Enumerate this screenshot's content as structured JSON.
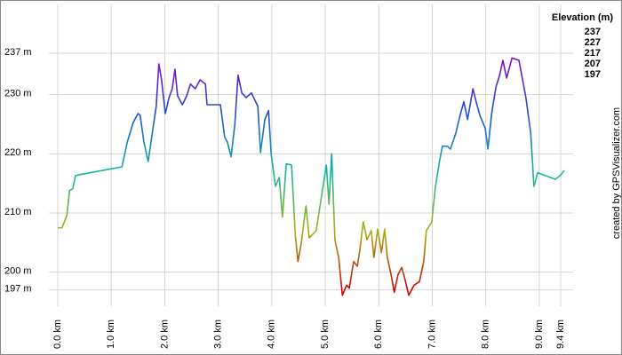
{
  "chart_data": {
    "type": "line",
    "x": [
      0,
      0.08,
      0.17,
      0.22,
      0.28,
      0.33,
      0.42,
      1.2,
      1.3,
      1.41,
      1.5,
      1.54,
      1.61,
      1.69,
      1.78,
      1.84,
      1.89,
      1.94,
      2.01,
      2.08,
      2.14,
      2.19,
      2.24,
      2.33,
      2.41,
      2.48,
      2.57,
      2.66,
      2.76,
      2.79,
      3.04,
      3.12,
      3.17,
      3.24,
      3.31,
      3.37,
      3.44,
      3.52,
      3.62,
      3.74,
      3.79,
      3.87,
      3.94,
      3.99,
      4.07,
      4.14,
      4.2,
      4.27,
      4.37,
      4.44,
      4.49,
      4.55,
      4.64,
      4.7,
      4.83,
      5.02,
      5.07,
      5.12,
      5.18,
      5.25,
      5.32,
      5.4,
      5.45,
      5.53,
      5.6,
      5.65,
      5.71,
      5.78,
      5.86,
      5.91,
      5.98,
      6.05,
      6.11,
      6.16,
      6.23,
      6.29,
      6.36,
      6.43,
      6.49,
      6.56,
      6.66,
      6.76,
      6.84,
      6.89,
      6.99,
      7.06,
      7.14,
      7.19,
      7.28,
      7.34,
      7.44,
      7.52,
      7.59,
      7.66,
      7.76,
      7.82,
      7.89,
      7.99,
      8.04,
      8.11,
      8.19,
      8.26,
      8.32,
      8.39,
      8.49,
      8.62,
      8.75,
      8.84,
      8.9,
      8.97,
      9.3,
      9.39,
      9.47
    ],
    "values": [
      207.5,
      207.5,
      209.6,
      213.8,
      214.1,
      216.3,
      216.5,
      217.8,
      222,
      225.3,
      226.8,
      226.5,
      222,
      218.7,
      224.3,
      228,
      235.2,
      232.5,
      226.8,
      229.5,
      231,
      234.3,
      229.8,
      228.3,
      229.8,
      231.8,
      231,
      232.5,
      231.8,
      228.3,
      228.3,
      222.8,
      222,
      219.5,
      225,
      233.3,
      230.3,
      229.5,
      230.3,
      228,
      220.2,
      225.8,
      227.3,
      219.8,
      214.5,
      216,
      209.3,
      218.3,
      218.1,
      206.3,
      201.8,
      204.8,
      211.2,
      205.8,
      207,
      218.1,
      211.5,
      220,
      205.5,
      202.5,
      196.1,
      197.8,
      197.3,
      201.8,
      201,
      204,
      208.5,
      205.5,
      207,
      202.5,
      207.3,
      203.3,
      207.3,
      202.5,
      199.6,
      196.6,
      199.6,
      200.8,
      198.8,
      196.1,
      197.8,
      198.4,
      201.8,
      207,
      208.5,
      214.5,
      219,
      221.3,
      221.3,
      220.8,
      223.5,
      226.5,
      228.8,
      225.8,
      231,
      228.8,
      226.5,
      224.3,
      220.8,
      226.8,
      231.3,
      233.3,
      235.8,
      232.8,
      236.2,
      235.8,
      229.5,
      223.5,
      214.5,
      216.8,
      215.7,
      216.3,
      217.2
    ],
    "xlim": [
      0,
      9.5
    ],
    "xticks": [
      {
        "value": 0,
        "label": "0.0 km"
      },
      {
        "value": 1,
        "label": "1.0 km"
      },
      {
        "value": 2,
        "label": "2.0 km"
      },
      {
        "value": 3,
        "label": "3.0 km"
      },
      {
        "value": 4,
        "label": "4.0 km"
      },
      {
        "value": 5,
        "label": "5.0 km"
      },
      {
        "value": 6,
        "label": "6.0 km"
      },
      {
        "value": 7,
        "label": "7.0 km"
      },
      {
        "value": 8,
        "label": "8.0 km"
      },
      {
        "value": 9,
        "label": "9.0 km"
      },
      {
        "value": 9.4,
        "label": "9.4 km"
      }
    ],
    "ylim": [
      195,
      244.5
    ],
    "yticks": [
      {
        "value": 197,
        "label": "197 m"
      },
      {
        "value": 200,
        "label": "200 m"
      },
      {
        "value": 210,
        "label": "210 m"
      },
      {
        "value": 220,
        "label": "220 m"
      },
      {
        "value": 230,
        "label": "230 m"
      },
      {
        "value": 237,
        "label": "237 m"
      }
    ],
    "grid": true,
    "legend": {
      "title": "Elevation (m)",
      "items": [
        {
          "value": 237,
          "color": "#9900cc"
        },
        {
          "value": 227,
          "color": "#1f4fd0"
        },
        {
          "value": 217,
          "color": "#10b8a0"
        },
        {
          "value": 207,
          "color": "#a8b010"
        },
        {
          "value": 197,
          "color": "#cc0000"
        }
      ]
    },
    "credit": "created by GPSVisualizer.com"
  }
}
